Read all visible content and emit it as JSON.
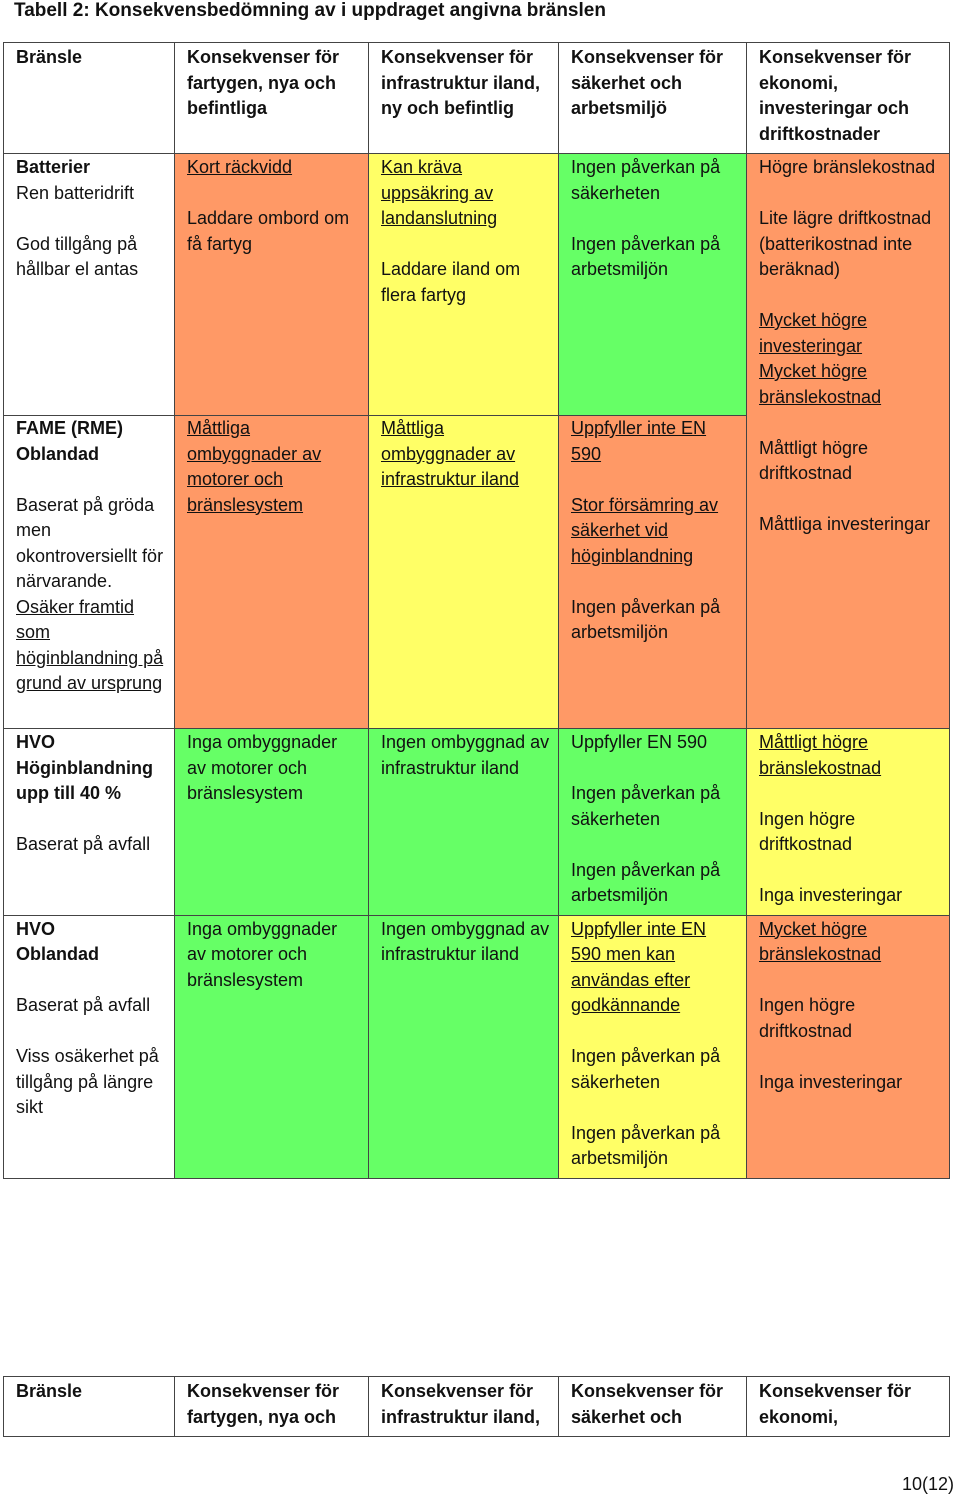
{
  "caption": "Tabell 2: Konsekvensbedömning av i uppdraget angivna bränslen",
  "headers": [
    "Bränsle",
    "Konsekvenser för fartygen, nya och befintliga",
    "Konsekvenser för infrastruktur iland, ny och befintlig",
    "Konsekvenser för säkerhet och arbetsmiljö",
    "Konsekvenser för ekonomi, investeringar och driftkostnader"
  ],
  "rows": [
    {
      "fuel": [
        "Batterier",
        "Ren batteridrift",
        "",
        "God tillgång på hållbar el antas"
      ],
      "vessels": [
        "Kort räckvidd",
        "",
        "Laddare ombord om få fartyg"
      ],
      "infra": [
        "Kan kräva uppsäkring av landanslutning",
        "",
        "Laddare iland om flera fartyg"
      ],
      "safety": [
        "Ingen påverkan på säkerheten",
        "",
        "Ingen påverkan på arbetsmiljön"
      ],
      "economy": [
        "Högre bränslekostnad",
        "",
        "Lite lägre driftkostnad (batterikostnad inte beräknad)"
      ]
    },
    {
      "fuel": [
        "FAME (RME)",
        "Oblandad",
        "",
        "Baserat på gröda men okontroversiellt för närvarande.",
        "Osäker framtid som höginblandning på grund av ursprung"
      ],
      "vessels": [
        "Måttliga ombyggnader av motorer och bränslesystem"
      ],
      "infra": [
        "Måttliga ombyggnader av infrastruktur iland"
      ],
      "safety": [
        "Uppfyller inte EN 590",
        "",
        "Stor försämring av säkerhet vid höginblandning",
        "",
        "Ingen påverkan på arbetsmiljön"
      ],
      "economy": [
        "Mycket högre investeringar",
        "Mycket högre bränslekostnad",
        "",
        "Måttligt högre driftkostnad",
        "",
        "Måttliga investeringar"
      ]
    },
    {
      "fuel": [
        "HVO",
        "Höginblandning upp till 40 %",
        "",
        "Baserat på avfall"
      ],
      "vessels": [
        "Inga ombyggnader av motorer och bränslesystem"
      ],
      "infra": [
        "Ingen ombyggnad av infrastruktur iland"
      ],
      "safety": [
        "Uppfyller EN 590",
        "",
        "Ingen påverkan på säkerheten",
        "",
        "Ingen påverkan på arbetsmiljön"
      ],
      "economy": [
        "Måttligt högre bränslekostnad",
        "",
        "Ingen högre driftkostnad",
        "",
        "Inga investeringar"
      ]
    },
    {
      "fuel": [
        "HVO",
        "Oblandad",
        "",
        "Baserat på avfall",
        "",
        "Viss osäkerhet på tillgång på längre sikt"
      ],
      "vessels": [
        "Inga ombyggnader av motorer och bränslesystem"
      ],
      "infra": [
        "Ingen ombyggnad av infrastruktur iland"
      ],
      "safety": [
        "Uppfyller inte EN 590 men kan användas efter godkännande",
        "",
        "Ingen påverkan på säkerheten",
        "",
        "Ingen påverkan på arbetsmiljön"
      ],
      "economy": [
        "Mycket högre bränslekostnad",
        "",
        "Ingen högre driftkostnad",
        "",
        "Inga investeringar"
      ]
    }
  ],
  "repeat_headers": [
    "Bränsle",
    "Konsekvenser för fartygen, nya och",
    "Konsekvenser för infrastruktur iland,",
    "Konsekvenser för säkerhet och",
    "Konsekvenser för ekonomi,"
  ],
  "page_number": "10(12)",
  "colors": {
    "green": "#66ff66",
    "yellow": "#ffff66",
    "orange": "#ff9966"
  }
}
